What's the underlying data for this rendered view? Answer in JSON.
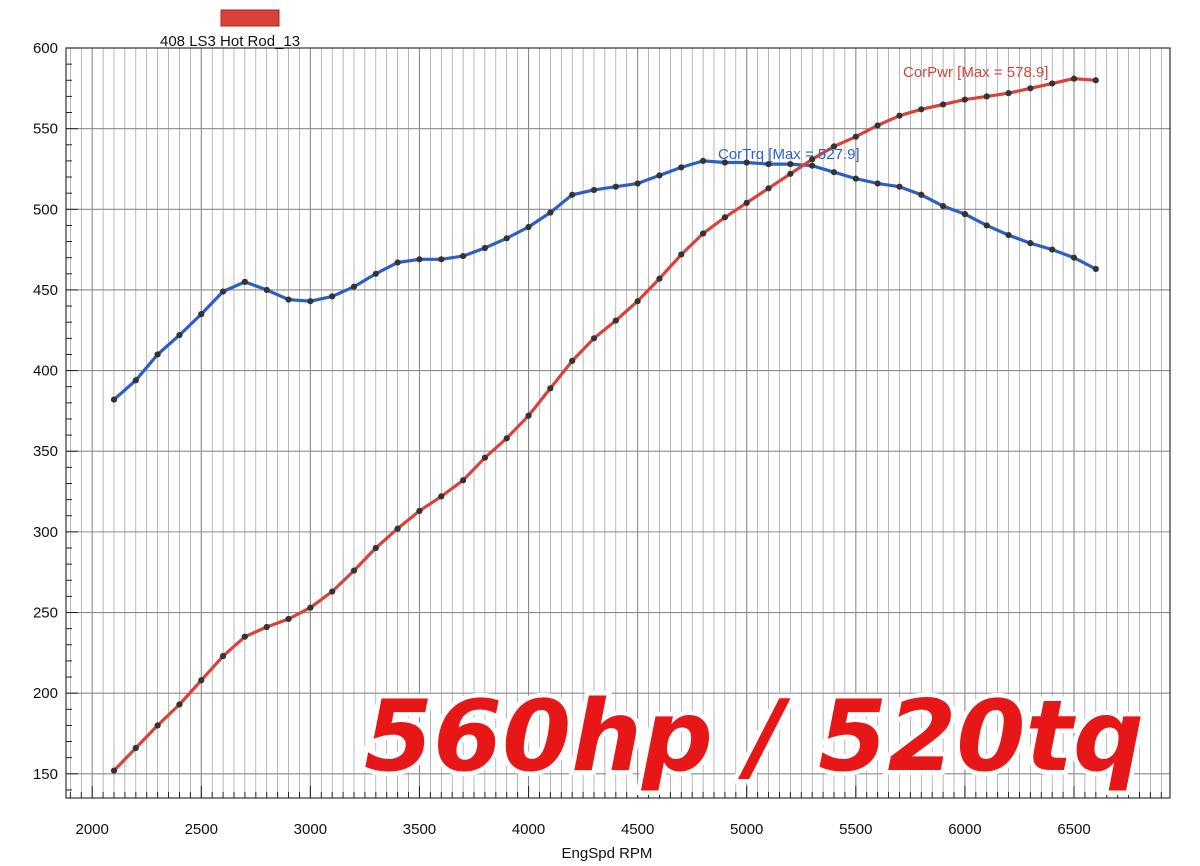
{
  "chart_data": {
    "type": "line",
    "xlabel": "EngSpd RPM",
    "ylabel": "",
    "xlim": [
      1880,
      6940
    ],
    "ylim": [
      135,
      600
    ],
    "x_ticks": [
      2000,
      2500,
      3000,
      3500,
      4000,
      4500,
      5000,
      5500,
      6000,
      6500
    ],
    "y_ticks": [
      150,
      200,
      250,
      300,
      350,
      400,
      450,
      500,
      550,
      600
    ],
    "grid": true,
    "legend": {
      "placement": "top-left",
      "entries": [
        "408 LS3 Hot Rod_13"
      ]
    },
    "annotations": {
      "power": "CorPwr [Max = 578.9]",
      "torque": "CorTrq [Max = 527.9]"
    },
    "overlay_text": "560hp / 520tq",
    "x": [
      2100,
      2200,
      2300,
      2400,
      2500,
      2600,
      2700,
      2800,
      2900,
      3000,
      3100,
      3200,
      3300,
      3400,
      3500,
      3600,
      3700,
      3800,
      3900,
      4000,
      4100,
      4200,
      4300,
      4400,
      4500,
      4600,
      4700,
      4800,
      4900,
      5000,
      5100,
      5200,
      5300,
      5400,
      5500,
      5600,
      5700,
      5800,
      5900,
      6000,
      6100,
      6200,
      6300,
      6400,
      6500,
      6600
    ],
    "series": [
      {
        "key": "torque",
        "color": "#2d5fc2",
        "values": [
          382,
          394,
          410,
          422,
          435,
          449,
          455,
          450,
          444,
          443,
          446,
          452,
          460,
          467,
          469,
          469,
          471,
          476,
          482,
          489,
          498,
          509,
          512,
          514,
          516,
          521,
          526,
          530,
          529,
          529,
          528,
          528,
          527,
          523,
          519,
          516,
          514,
          509,
          502,
          497,
          490,
          484,
          479,
          475,
          470,
          463
        ]
      },
      {
        "key": "power",
        "color": "#d8423a",
        "values": [
          152,
          166,
          180,
          193,
          208,
          223,
          235,
          241,
          246,
          253,
          263,
          276,
          290,
          302,
          313,
          322,
          332,
          346,
          358,
          372,
          389,
          406,
          420,
          431,
          443,
          457,
          472,
          485,
          495,
          504,
          513,
          522,
          531,
          539,
          545,
          552,
          558,
          562,
          565,
          568,
          570,
          572,
          575,
          578,
          581,
          580
        ]
      }
    ],
    "colors": {
      "legend_swatch": "#d8423a",
      "grid": "#8a8a8a"
    }
  }
}
